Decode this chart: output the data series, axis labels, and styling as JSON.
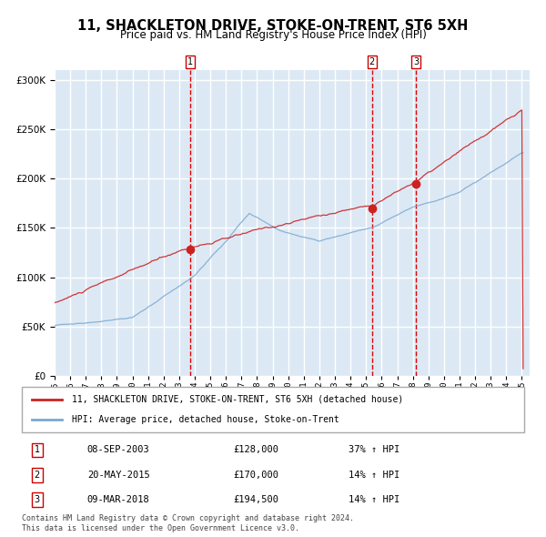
{
  "title": "11, SHACKLETON DRIVE, STOKE-ON-TRENT, ST6 5XH",
  "subtitle": "Price paid vs. HM Land Registry's House Price Index (HPI)",
  "legend_property": "11, SHACKLETON DRIVE, STOKE-ON-TRENT, ST6 5XH (detached house)",
  "legend_hpi": "HPI: Average price, detached house, Stoke-on-Trent",
  "footer1": "Contains HM Land Registry data © Crown copyright and database right 2024.",
  "footer2": "This data is licensed under the Open Government Licence v3.0.",
  "sales": [
    {
      "label": "1",
      "date": "08-SEP-2003",
      "price": 128000,
      "pct": "37%",
      "dir": "↑"
    },
    {
      "label": "2",
      "date": "20-MAY-2015",
      "price": 170000,
      "pct": "14%",
      "dir": "↑"
    },
    {
      "label": "3",
      "date": "09-MAR-2018",
      "price": 194500,
      "pct": "14%",
      "dir": "↑"
    }
  ],
  "sale_dates_decimal": [
    2003.69,
    2015.38,
    2018.19
  ],
  "sale_prices": [
    128000,
    170000,
    194500
  ],
  "background_color": "#dce9f5",
  "plot_bg": "#dce9f5",
  "grid_color": "#ffffff",
  "red_color": "#cc2222",
  "blue_color": "#7aa8d0",
  "vline_color": "#dd0000",
  "ylim": [
    0,
    310000
  ],
  "yticks": [
    0,
    50000,
    100000,
    150000,
    200000,
    250000,
    300000
  ],
  "start_year": 1995,
  "end_year": 2025
}
